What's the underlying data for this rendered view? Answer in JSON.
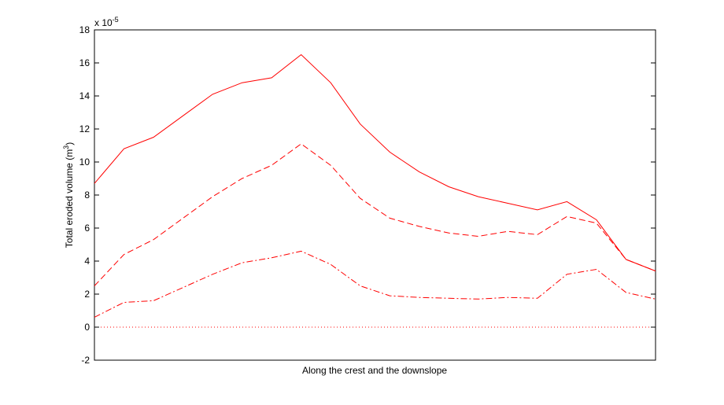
{
  "chart_data": {
    "type": "line",
    "title": "",
    "xlabel": "Along the crest and the downslope",
    "ylabel_main": "Total eroded volume (m",
    "ylabel_sup": "3",
    "ylabel_close": ")",
    "exponent_prefix": "x 10",
    "exponent_power": "-5",
    "xlim": [
      0,
      19
    ],
    "ylim": [
      -2,
      18
    ],
    "yticks": [
      -2,
      0,
      2,
      4,
      6,
      8,
      10,
      12,
      14,
      16,
      18
    ],
    "grid": false,
    "legend": "none",
    "x": [
      0,
      1,
      2,
      3,
      4,
      5,
      6,
      7,
      8,
      9,
      10,
      11,
      12,
      13,
      14,
      15,
      16,
      17,
      18,
      19
    ],
    "series": [
      {
        "style": "solid",
        "color": "#ff0000",
        "values": [
          8.7,
          10.8,
          11.5,
          12.8,
          14.1,
          14.8,
          15.1,
          16.5,
          14.8,
          12.3,
          10.6,
          9.4,
          8.5,
          7.9,
          7.5,
          7.1,
          7.6,
          6.5,
          4.1,
          3.4
        ]
      },
      {
        "style": "dashed",
        "color": "#ff0000",
        "values": [
          2.5,
          4.4,
          5.3,
          6.6,
          7.9,
          9.0,
          9.8,
          11.1,
          9.8,
          7.8,
          6.6,
          6.1,
          5.7,
          5.5,
          5.8,
          5.6,
          6.7,
          6.3,
          4.1,
          3.4
        ]
      },
      {
        "style": "dashdot",
        "color": "#ff0000",
        "values": [
          0.6,
          1.5,
          1.6,
          2.4,
          3.2,
          3.9,
          4.2,
          4.6,
          3.8,
          2.5,
          1.9,
          1.8,
          1.75,
          1.7,
          1.8,
          1.75,
          3.2,
          3.5,
          2.1,
          1.7
        ]
      },
      {
        "style": "dotted",
        "color": "#ff0000",
        "values": [
          0,
          0,
          0,
          0,
          0,
          0,
          0,
          0,
          0,
          0,
          0,
          0,
          0,
          0,
          0,
          0,
          0,
          0,
          0,
          0
        ]
      }
    ]
  }
}
